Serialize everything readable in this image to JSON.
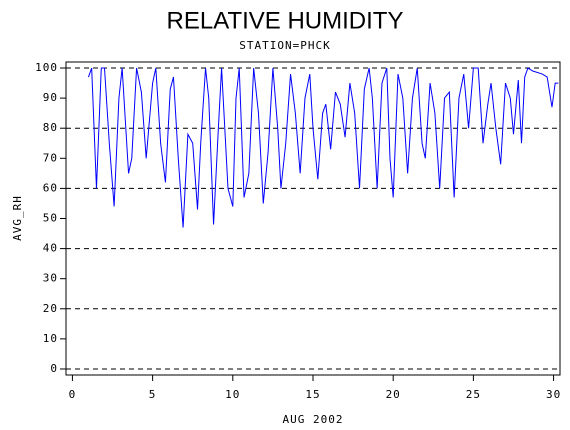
{
  "chart_data": {
    "type": "line",
    "title": "RELATIVE HUMIDITY",
    "subtitle": "STATION=PHCK",
    "x_label": "AUG 2002",
    "y_label": "AVG_RH",
    "xlim": [
      -0.4,
      30.4
    ],
    "ylim": [
      -2,
      102
    ],
    "xticks": [
      0,
      5,
      10,
      15,
      20,
      25,
      30
    ],
    "yticks": [
      0,
      10,
      20,
      30,
      40,
      50,
      60,
      70,
      80,
      90,
      100
    ],
    "ygrid": [
      0,
      20,
      40,
      60,
      80,
      100
    ],
    "series": [
      {
        "name": "AVG_RH",
        "color": "#0000ff",
        "x": [
          1.0,
          1.2,
          1.5,
          1.8,
          2.0,
          2.3,
          2.6,
          2.9,
          3.1,
          3.5,
          3.7,
          4.0,
          4.3,
          4.6,
          5.0,
          5.2,
          5.5,
          5.8,
          6.1,
          6.3,
          6.6,
          6.9,
          7.2,
          7.5,
          7.8,
          8.0,
          8.3,
          8.5,
          8.8,
          9.1,
          9.3,
          9.7,
          10.0,
          10.2,
          10.4,
          10.7,
          11.0,
          11.3,
          11.6,
          11.9,
          12.2,
          12.5,
          12.8,
          13.0,
          13.3,
          13.6,
          13.9,
          14.2,
          14.5,
          14.8,
          15.0,
          15.3,
          15.6,
          15.8,
          16.1,
          16.4,
          16.7,
          17.0,
          17.3,
          17.6,
          17.9,
          18.2,
          18.5,
          18.7,
          19.0,
          19.3,
          19.6,
          19.8,
          20.0,
          20.3,
          20.6,
          20.9,
          21.2,
          21.5,
          21.8,
          22.0,
          22.3,
          22.6,
          22.9,
          23.2,
          23.5,
          23.8,
          24.1,
          24.4,
          24.7,
          25.0,
          25.3,
          25.6,
          25.9,
          26.1,
          26.4,
          26.7,
          27.0,
          27.3,
          27.5,
          27.8,
          28.0,
          28.2,
          28.4,
          28.7,
          29.3,
          29.6,
          29.9,
          30.1,
          30.3
        ],
        "values": [
          97,
          100,
          60,
          100,
          100,
          75,
          54,
          90,
          100,
          65,
          70,
          100,
          92,
          70,
          95,
          100,
          75,
          62,
          93,
          97,
          70,
          47,
          78,
          75,
          53,
          75,
          100,
          90,
          48,
          80,
          100,
          60,
          54,
          90,
          100,
          57,
          65,
          100,
          85,
          55,
          72,
          100,
          80,
          60,
          75,
          98,
          85,
          65,
          90,
          98,
          80,
          63,
          85,
          88,
          73,
          92,
          88,
          77,
          95,
          85,
          60,
          93,
          100,
          90,
          60,
          95,
          100,
          70,
          57,
          98,
          90,
          65,
          90,
          100,
          75,
          70,
          95,
          85,
          60,
          90,
          92,
          57,
          90,
          98,
          80,
          100,
          100,
          75,
          88,
          95,
          80,
          68,
          95,
          90,
          78,
          96,
          75,
          97,
          100,
          99,
          98,
          97,
          87,
          95,
          95
        ]
      }
    ]
  }
}
